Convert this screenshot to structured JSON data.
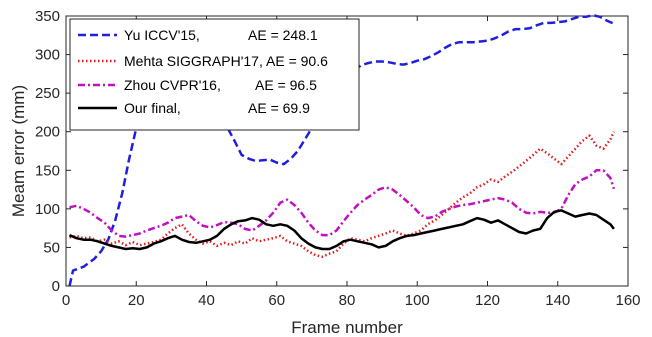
{
  "chart_data": {
    "type": "line",
    "xlabel": "Frame number",
    "ylabel": "Meam error (mm)",
    "xlim": [
      0,
      160
    ],
    "ylim": [
      0,
      350
    ],
    "xticks": [
      0,
      20,
      40,
      60,
      80,
      100,
      120,
      140,
      160
    ],
    "yticks": [
      0,
      50,
      100,
      150,
      200,
      250,
      300,
      350
    ],
    "grid": false,
    "legend_position": "top-left",
    "series": [
      {
        "name": "Yu ICCV'15,",
        "ae_label": "AE = 248.1",
        "color": "#1f1fe0",
        "dash": "dashed",
        "x": [
          1,
          2,
          5,
          8,
          10,
          12,
          14,
          16,
          18,
          20,
          22,
          24,
          26,
          28,
          30,
          32,
          34,
          36,
          38,
          40,
          42,
          44,
          46,
          48,
          50,
          52,
          54,
          56,
          58,
          60,
          62,
          64,
          66,
          68,
          70,
          72,
          74,
          76,
          78,
          80,
          82,
          84,
          86,
          88,
          90,
          92,
          94,
          96,
          98,
          100,
          102,
          104,
          106,
          108,
          110,
          112,
          114,
          116,
          118,
          120,
          122,
          124,
          126,
          128,
          130,
          132,
          134,
          136,
          138,
          140,
          142,
          144,
          146,
          148,
          150,
          152,
          154,
          156
        ],
        "values": [
          0,
          20,
          25,
          35,
          45,
          60,
          85,
          120,
          165,
          205,
          235,
          250,
          258,
          262,
          265,
          266,
          265,
          264,
          262,
          255,
          238,
          222,
          205,
          188,
          170,
          165,
          162,
          163,
          164,
          160,
          158,
          165,
          175,
          190,
          205,
          222,
          236,
          250,
          262,
          272,
          280,
          286,
          289,
          291,
          291,
          290,
          288,
          287,
          289,
          292,
          294,
          298,
          303,
          309,
          314,
          316,
          316,
          316,
          317,
          318,
          321,
          325,
          330,
          333,
          333,
          334,
          338,
          341,
          341,
          342,
          343,
          346,
          349,
          349,
          351,
          349,
          344,
          340
        ]
      },
      {
        "name": "Mehta SIGGRAPH'17,",
        "ae_label": "AE = 90.6",
        "color": "#e41a1a",
        "dash": "dotted",
        "x": [
          1,
          3,
          5,
          7,
          9,
          11,
          13,
          15,
          17,
          19,
          21,
          23,
          25,
          27,
          29,
          31,
          33,
          35,
          37,
          39,
          41,
          43,
          45,
          47,
          49,
          51,
          53,
          55,
          57,
          59,
          61,
          63,
          65,
          67,
          69,
          71,
          73,
          75,
          77,
          79,
          81,
          83,
          85,
          87,
          89,
          91,
          93,
          95,
          97,
          99,
          101,
          103,
          105,
          107,
          109,
          111,
          113,
          115,
          117,
          119,
          121,
          123,
          125,
          127,
          129,
          131,
          133,
          135,
          137,
          139,
          141,
          143,
          145,
          147,
          149,
          151,
          153,
          155,
          156
        ],
        "values": [
          63,
          65,
          62,
          63,
          58,
          60,
          55,
          58,
          53,
          57,
          53,
          55,
          57,
          60,
          68,
          75,
          80,
          68,
          60,
          55,
          58,
          52,
          56,
          53,
          58,
          55,
          62,
          58,
          60,
          62,
          65,
          58,
          55,
          52,
          45,
          40,
          38,
          42,
          45,
          55,
          62,
          60,
          58,
          62,
          65,
          68,
          72,
          68,
          65,
          68,
          72,
          80,
          85,
          92,
          100,
          108,
          115,
          120,
          128,
          132,
          138,
          135,
          142,
          148,
          155,
          162,
          170,
          178,
          172,
          165,
          158,
          168,
          178,
          188,
          195,
          182,
          178,
          190,
          200
        ]
      },
      {
        "name": "Zhou CVPR'16,",
        "ae_label": "AE = 96.5",
        "color": "#c010c0",
        "dash": "dashdot",
        "x": [
          1,
          3,
          5,
          7,
          9,
          11,
          13,
          15,
          17,
          19,
          21,
          23,
          25,
          27,
          29,
          31,
          33,
          35,
          37,
          39,
          41,
          43,
          45,
          47,
          49,
          51,
          53,
          55,
          57,
          59,
          61,
          63,
          65,
          67,
          69,
          71,
          73,
          75,
          77,
          79,
          81,
          83,
          85,
          87,
          89,
          91,
          93,
          95,
          97,
          99,
          101,
          103,
          105,
          107,
          109,
          111,
          113,
          115,
          117,
          119,
          121,
          123,
          125,
          127,
          129,
          131,
          133,
          135,
          137,
          139,
          141,
          143,
          145,
          147,
          149,
          151,
          153,
          155,
          156
        ],
        "values": [
          102,
          104,
          100,
          95,
          88,
          82,
          72,
          65,
          64,
          66,
          68,
          72,
          75,
          78,
          82,
          88,
          90,
          92,
          84,
          78,
          76,
          79,
          83,
          82,
          80,
          74,
          72,
          78,
          85,
          95,
          108,
          112,
          105,
          95,
          82,
          72,
          66,
          66,
          72,
          84,
          95,
          105,
          112,
          118,
          125,
          128,
          125,
          118,
          110,
          102,
          92,
          88,
          90,
          96,
          100,
          103,
          105,
          106,
          108,
          110,
          112,
          114,
          112,
          108,
          100,
          95,
          94,
          96,
          95,
          95,
          100,
          118,
          132,
          138,
          142,
          150,
          150,
          140,
          126
        ]
      },
      {
        "name": "Our final,",
        "ae_label": "AE = 69.9",
        "color": "#000000",
        "dash": "solid",
        "x": [
          1,
          3,
          5,
          7,
          9,
          11,
          13,
          15,
          17,
          19,
          21,
          23,
          25,
          27,
          29,
          31,
          33,
          35,
          37,
          39,
          41,
          43,
          45,
          47,
          49,
          51,
          53,
          55,
          57,
          59,
          61,
          63,
          65,
          67,
          69,
          71,
          73,
          75,
          77,
          79,
          81,
          83,
          85,
          87,
          89,
          91,
          93,
          95,
          97,
          99,
          101,
          103,
          105,
          107,
          109,
          111,
          113,
          115,
          117,
          119,
          121,
          123,
          125,
          127,
          129,
          131,
          133,
          135,
          137,
          139,
          141,
          143,
          145,
          147,
          149,
          151,
          153,
          155,
          156
        ],
        "values": [
          66,
          62,
          60,
          60,
          58,
          55,
          52,
          50,
          48,
          49,
          48,
          50,
          55,
          58,
          62,
          65,
          60,
          57,
          56,
          58,
          60,
          65,
          74,
          80,
          84,
          85,
          88,
          86,
          80,
          78,
          80,
          78,
          72,
          62,
          55,
          50,
          48,
          48,
          52,
          58,
          60,
          58,
          56,
          54,
          50,
          52,
          58,
          62,
          65,
          66,
          68,
          70,
          72,
          74,
          76,
          78,
          80,
          84,
          88,
          86,
          82,
          85,
          80,
          75,
          70,
          68,
          72,
          74,
          88,
          96,
          98,
          94,
          90,
          92,
          94,
          92,
          86,
          80,
          74
        ]
      }
    ]
  }
}
